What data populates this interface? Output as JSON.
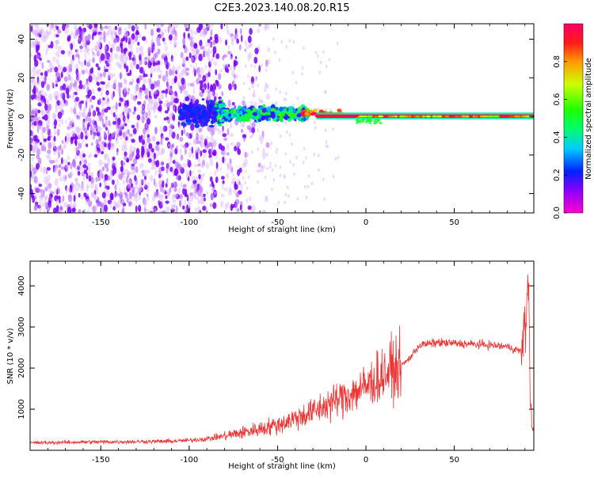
{
  "title": "C2E3.2023.140.08.20.R15",
  "chart_data": [
    {
      "type": "heatmap",
      "xlabel": "Height of straight line (km)",
      "ylabel": "Frequency (Hz)",
      "xlim": [
        -190,
        95
      ],
      "ylim": [
        -50,
        48
      ],
      "x_ticks": [
        -150,
        -100,
        -50,
        0,
        50
      ],
      "y_ticks": [
        -40,
        -20,
        0,
        20,
        40
      ],
      "colorbar": {
        "label": "Normalized spectral amplitude",
        "range": [
          0,
          1
        ],
        "ticks": [
          "0.0",
          "0.2",
          "0.4",
          "0.6",
          "0.8"
        ],
        "colormap": "gist_rainbow_r"
      },
      "description_points": [
        {
          "x": -190,
          "y": 0,
          "amplitude": 0.15
        },
        {
          "x": -100,
          "y": 0,
          "amplitude": 0.25
        },
        {
          "x": -60,
          "y": 2,
          "amplitude": 0.45
        },
        {
          "x": -35,
          "y": 2,
          "amplitude": 0.6
        },
        {
          "x": -28,
          "y": 1,
          "amplitude": 0.95
        },
        {
          "x": 0,
          "y": 0,
          "amplitude": 0.9
        },
        {
          "x": 50,
          "y": 0,
          "amplitude": 0.95
        },
        {
          "x": 90,
          "y": 0,
          "amplitude": 0.9
        }
      ]
    },
    {
      "type": "line",
      "xlabel": "Height of straight line (km)",
      "ylabel": "SNR (10 * v/v)",
      "xlim": [
        -190,
        95
      ],
      "ylim": [
        0,
        4600
      ],
      "x_ticks": [
        -150,
        -100,
        -50,
        0,
        50
      ],
      "y_ticks": [
        1000,
        2000,
        3000,
        4000
      ],
      "series": [
        {
          "color": "#ee3333",
          "x": [
            -190,
            -160,
            -130,
            -110,
            -100,
            -90,
            -80,
            -70,
            -60,
            -50,
            -40,
            -30,
            -20,
            -10,
            0,
            10,
            20,
            25,
            30,
            40,
            50,
            60,
            70,
            80,
            85,
            88,
            90,
            92,
            93,
            94
          ],
          "y": [
            180,
            200,
            210,
            220,
            240,
            280,
            350,
            430,
            520,
            620,
            780,
            930,
            1150,
            1350,
            1550,
            1850,
            2050,
            2250,
            2550,
            2620,
            2600,
            2580,
            2560,
            2520,
            2450,
            2400,
            2900,
            4200,
            1400,
            500
          ]
        }
      ]
    }
  ]
}
